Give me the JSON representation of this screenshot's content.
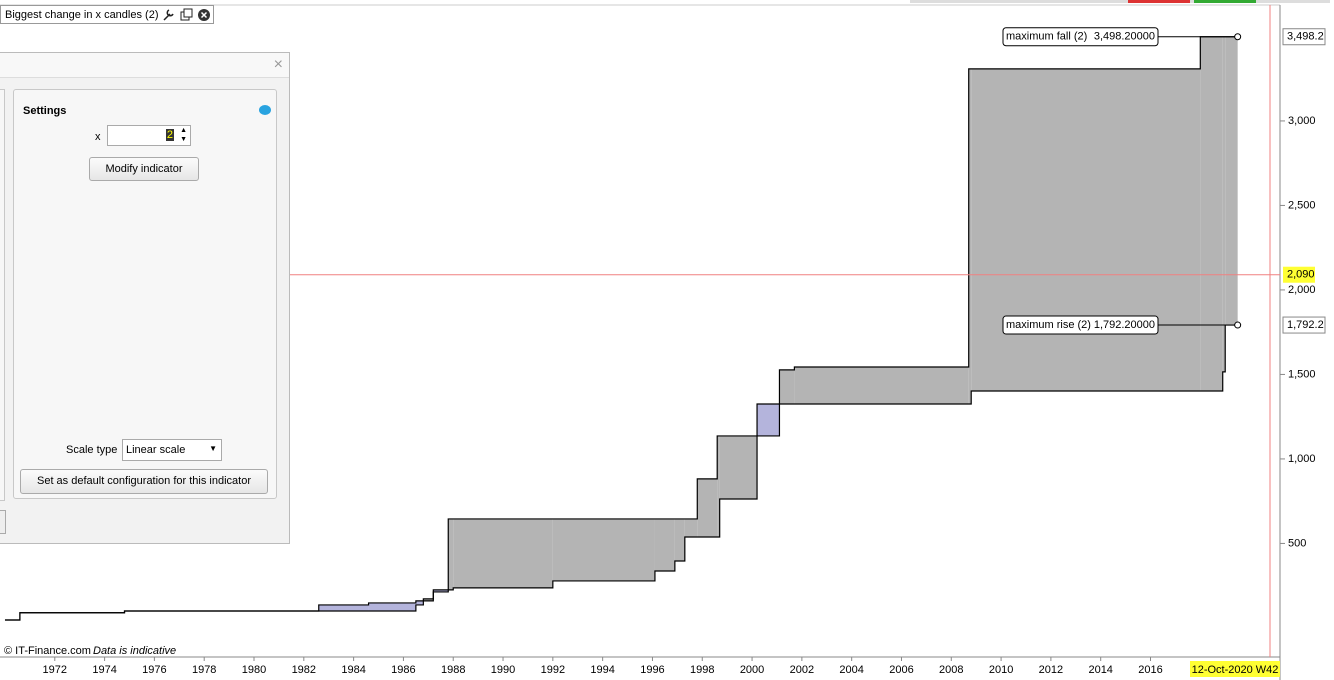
{
  "window": {
    "title": "Biggest change in x candles (2)"
  },
  "settings_panel": {
    "heading": "Settings",
    "x_label": "x",
    "x_value": 2,
    "modify_button": "Modify indicator",
    "scale_type_label": "Scale type",
    "scale_type_value": "Linear scale",
    "default_button": "Set as default configuration for this indicator"
  },
  "footer": {
    "copyright": "© IT-Finance.com",
    "note": "Data is indicative"
  },
  "chart_data": {
    "type": "step-area",
    "x": [
      1970.0,
      1970.6,
      1974.8,
      1982.6,
      1984.6,
      1986.5,
      1986.8,
      1987.2,
      1987.8,
      1988.0,
      1992.0,
      1996.1,
      1996.9,
      1997.3,
      1997.8,
      1998.6,
      1998.7,
      2000.2,
      2001.1,
      2001.7,
      2008.7,
      2008.8,
      2018.0,
      2018.9,
      2019.0,
      2019.5
    ],
    "series": [
      {
        "name": "maximum fall (2)",
        "color": "#000000",
        "end_label": "3,498.20000",
        "axis_tag": "3,498.2",
        "values": [
          47,
          90,
          100,
          100,
          100,
          136,
          172,
          213,
          645,
          645,
          645,
          645,
          645,
          645,
          882,
          1136,
          1136,
          1136,
          1527,
          1544,
          3308,
          3308,
          3498,
          3498,
          3498,
          3498.2
        ]
      },
      {
        "name": "maximum rise (2)",
        "color": "#000000",
        "end_label": "1,792.20000",
        "axis_tag": "1,792.2",
        "values": [
          47,
          90,
          100,
          136,
          148,
          160,
          160,
          225,
          225,
          237,
          278,
          337,
          396,
          538,
          538,
          538,
          763,
          1325,
          1325,
          1325,
          1325,
          1402,
          1402,
          1515,
          1792,
          1792.2
        ]
      }
    ],
    "fill_colors": {
      "fall_above": "#b4b4b4",
      "rise_above": "#b4b4dc"
    },
    "xlim": [
      1969.8,
      2021.2
    ],
    "xticks": [
      1972,
      1974,
      1976,
      1978,
      1980,
      1982,
      1984,
      1986,
      1988,
      1990,
      1992,
      1994,
      1996,
      1998,
      2000,
      2002,
      2004,
      2006,
      2008,
      2010,
      2012,
      2014,
      2016
    ],
    "x_cursor_label": "12-Oct-2020 W42",
    "ylim": [
      -172,
      3686
    ],
    "yticks": [
      {
        "value": 500,
        "label": "500"
      },
      {
        "value": 1000,
        "label": "1,000"
      },
      {
        "value": 1500,
        "label": "1,500"
      },
      {
        "value": 2000,
        "label": "2,000"
      },
      {
        "value": 2500,
        "label": "2,500"
      },
      {
        "value": 3000,
        "label": "3,000"
      }
    ],
    "crosshair": {
      "value": 2090,
      "label": "2,090",
      "color": "#f08080"
    }
  }
}
